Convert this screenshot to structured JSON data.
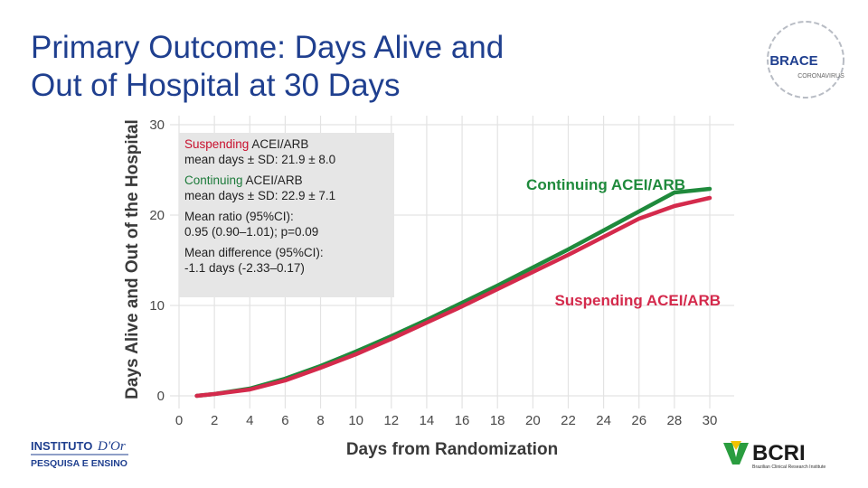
{
  "title": {
    "line1": "Primary Outcome: Days Alive and",
    "line2": "Out of Hospital at 30 Days"
  },
  "stats": {
    "suspending": {
      "name": "Suspending",
      "suffix": " ACEI/ARB",
      "detail": "mean days ± SD: 21.9 ± 8.0"
    },
    "continuing": {
      "name": "Continuing",
      "suffix": " ACEI/ARB",
      "detail": "mean days ± SD: 22.9 ± 7.1"
    },
    "ratio": {
      "label": "Mean ratio (95%CI):",
      "detail": "0.95 (0.90–1.01); p=0.09"
    },
    "difference": {
      "label": "Mean difference (95%CI):",
      "detail": "-1.1 days (-2.33–0.17)"
    }
  },
  "logos": {
    "brace_text": "BRACE",
    "brace_sub": "CORONAVIRUS",
    "ido_line1": "INSTITUTO",
    "ido_script": "D'Or",
    "ido_line2": "PESQUISA E ENSINO",
    "bcri_text": "BCRI",
    "bcri_sub": "Brazilian Clinical Research Institute"
  },
  "colors": {
    "continuing": "#1f8a3c",
    "suspending": "#d42a4c",
    "title": "#1f3f8f"
  },
  "chart_data": {
    "type": "line",
    "xlabel": "Days from Randomization",
    "ylabel": "Days Alive and Out of the Hospital",
    "xlim": [
      0,
      31
    ],
    "ylim": [
      0,
      30
    ],
    "x_ticks": [
      0,
      2,
      4,
      6,
      8,
      10,
      12,
      14,
      16,
      18,
      20,
      22,
      24,
      26,
      28,
      30
    ],
    "y_ticks": [
      0,
      10,
      20,
      30
    ],
    "grid": true,
    "series": [
      {
        "name": "Continuing ACEI/ARB",
        "x": [
          1,
          2,
          4,
          6,
          8,
          10,
          12,
          14,
          16,
          18,
          20,
          22,
          24,
          26,
          28,
          30
        ],
        "y": [
          0.0,
          0.2,
          0.8,
          1.9,
          3.3,
          4.9,
          6.6,
          8.4,
          10.3,
          12.2,
          14.2,
          16.2,
          18.3,
          20.4,
          22.5,
          22.9
        ]
      },
      {
        "name": "Suspending ACEI/ARB",
        "x": [
          1,
          2,
          4,
          6,
          8,
          10,
          12,
          14,
          16,
          18,
          20,
          22,
          24,
          26,
          28,
          30
        ],
        "y": [
          0.0,
          0.2,
          0.7,
          1.7,
          3.1,
          4.6,
          6.3,
          8.1,
          9.9,
          11.8,
          13.7,
          15.6,
          17.6,
          19.6,
          21.0,
          21.9
        ]
      }
    ]
  }
}
